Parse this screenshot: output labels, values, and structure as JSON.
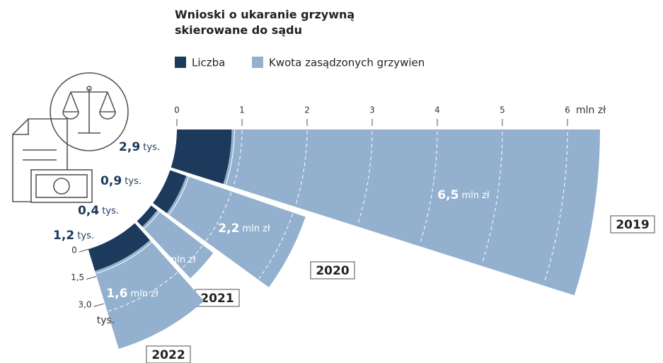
{
  "chart_data": {
    "type": "radial_bar",
    "title": "Wnioski o ukaranie grzywną skierowane do sądu",
    "categories": [
      "2019",
      "2020",
      "2021",
      "2022"
    ],
    "series": [
      {
        "name": "Liczba",
        "color": "#1b3a5c",
        "axis": "y2",
        "values": [
          2.9,
          0.9,
          0.4,
          1.2
        ],
        "value_labels": [
          "2,9 tys.",
          "0,9 tys.",
          "0,4 tys.",
          "1,2 tys."
        ]
      },
      {
        "name": "Kwota zasądzonych grzywien",
        "color": "#93b1cf",
        "values": [
          6.5,
          2.2,
          1.2,
          1.6
        ],
        "value_labels": [
          "6,5 mln zł",
          "2,2 mln zł",
          "1,2 mln zł",
          "1,6 mln zł"
        ]
      }
    ],
    "ylim": [
      0,
      6.5
    ],
    "yticks": [
      0,
      1,
      2,
      3,
      4,
      5,
      6
    ],
    "y_unit": "mln zł",
    "y2lim": [
      0,
      3
    ],
    "y2ticks": [
      0,
      {
        "value": 1.5,
        "label": "1,5"
      },
      {
        "value": 3,
        "label": "3,0"
      }
    ],
    "y2_unit": "tys."
  }
}
